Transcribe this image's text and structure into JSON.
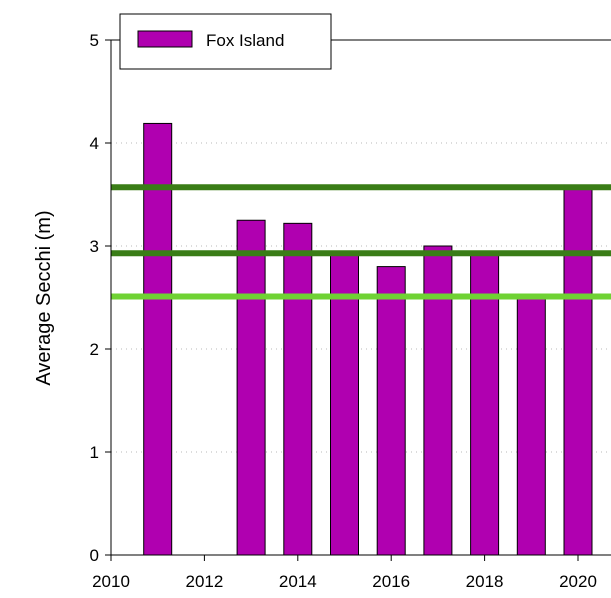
{
  "chart_data": {
    "type": "bar",
    "ylabel": "Average Secchi (m)",
    "xlabel": "",
    "xlim": [
      2010,
      2020.5
    ],
    "ylim": [
      0,
      5
    ],
    "x_ticks": [
      "2010",
      "2012",
      "2014",
      "2016",
      "2018",
      "2020"
    ],
    "y_ticks": [
      "0",
      "1",
      "2",
      "3",
      "4",
      "5"
    ],
    "grid": "horizontal dotted",
    "legend_position": "top-left",
    "series": [
      {
        "name": "Fox Island",
        "color": "#b000b0",
        "x": [
          2011,
          2013,
          2014,
          2015,
          2016,
          2017,
          2018,
          2019,
          2020
        ],
        "values": [
          4.19,
          3.25,
          3.22,
          2.93,
          2.8,
          3.0,
          2.93,
          2.49,
          3.55
        ]
      }
    ],
    "reference_lines": [
      {
        "value": 3.57,
        "color": "#3a7d17"
      },
      {
        "value": 2.93,
        "color": "#3a7d17"
      },
      {
        "value": 2.51,
        "color": "#6fd233"
      }
    ]
  }
}
